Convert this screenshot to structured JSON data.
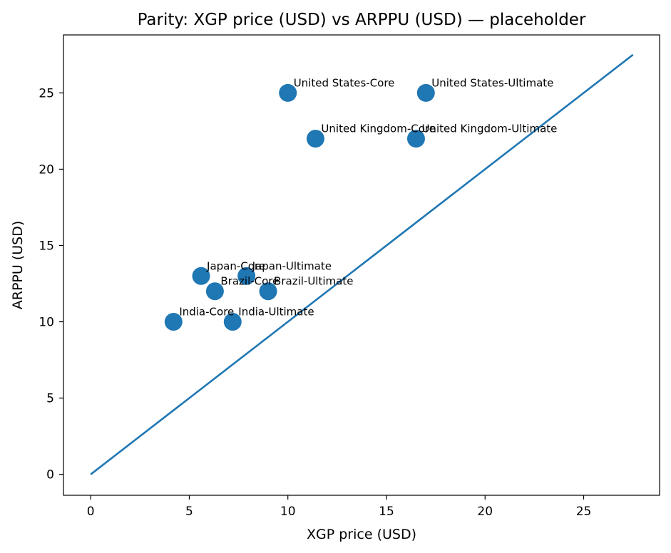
{
  "chart_data": {
    "type": "scatter",
    "title": "Parity: XGP price (USD) vs ARPPU (USD) — placeholder",
    "xlabel": "XGP price (USD)",
    "ylabel": "ARPPU (USD)",
    "xlim": [
      -1.38,
      28.85
    ],
    "ylim": [
      -1.37,
      28.8
    ],
    "x_ticks": [
      0,
      5,
      10,
      15,
      20,
      25
    ],
    "y_ticks": [
      0,
      5,
      10,
      15,
      20,
      25
    ],
    "grid": false,
    "marker_color": "#1f77b4",
    "line_color": "#1f77b4",
    "parity_line": {
      "x": [
        0,
        27.5
      ],
      "y": [
        0,
        27.5
      ]
    },
    "points": [
      {
        "label": "United States-Core",
        "x": 10.0,
        "y": 25.0
      },
      {
        "label": "United States-Ultimate",
        "x": 17.0,
        "y": 25.0
      },
      {
        "label": "United Kingdom-Core",
        "x": 11.4,
        "y": 22.0
      },
      {
        "label": "United Kingdom-Ultimate",
        "x": 16.5,
        "y": 22.0
      },
      {
        "label": "Japan-Core",
        "x": 5.6,
        "y": 13.0
      },
      {
        "label": "Japan-Ultimate",
        "x": 7.9,
        "y": 13.0
      },
      {
        "label": "Brazil-Core",
        "x": 6.3,
        "y": 12.0
      },
      {
        "label": "Brazil-Ultimate",
        "x": 9.0,
        "y": 12.0
      },
      {
        "label": "India-Core",
        "x": 4.2,
        "y": 10.0
      },
      {
        "label": "India-Ultimate",
        "x": 7.2,
        "y": 10.0
      }
    ]
  }
}
